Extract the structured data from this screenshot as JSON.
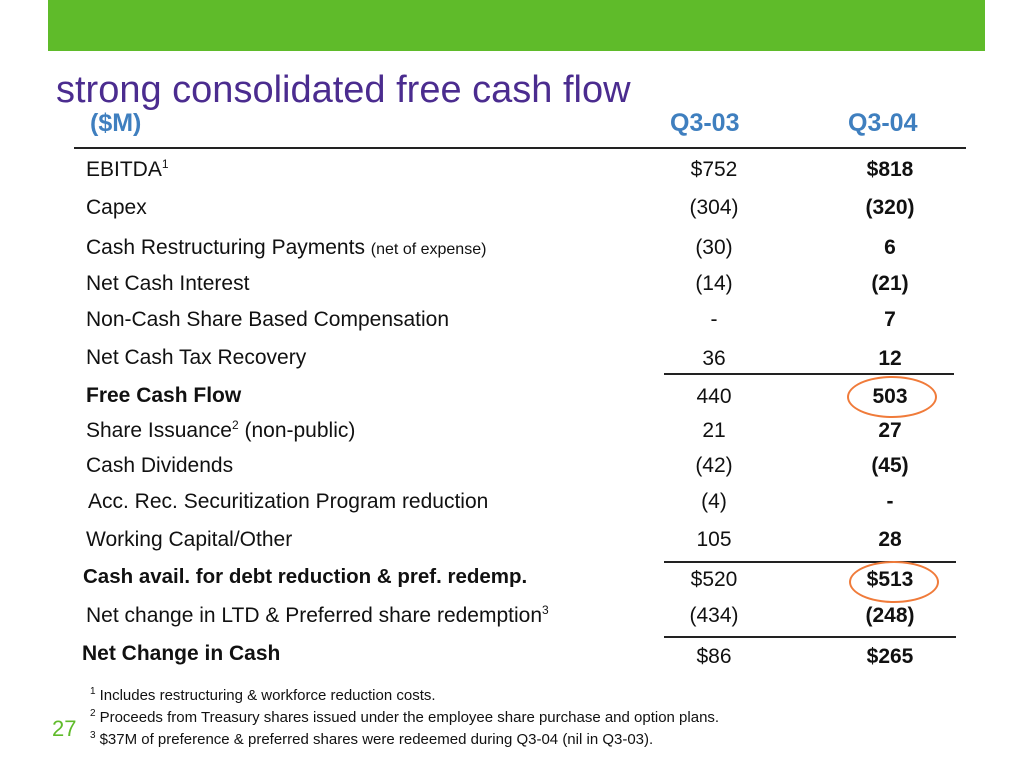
{
  "title": "strong consolidated free cash flow",
  "columns": {
    "unit": "($M)",
    "q1": "Q3-03",
    "q2": "Q3-04"
  },
  "rows": [
    {
      "label": "EBITDA",
      "sup": "1",
      "note": "",
      "v1": "$752",
      "v2": "$818"
    },
    {
      "label": "Capex",
      "sup": "",
      "note": "",
      "v1": "(304)",
      "v2": "(320)"
    },
    {
      "label": "Cash Restructuring Payments",
      "sup": "",
      "note": "(net of expense)",
      "v1": "(30)",
      "v2": "6"
    },
    {
      "label": "Net Cash Interest",
      "sup": "",
      "note": "",
      "v1": "(14)",
      "v2": "(21)"
    },
    {
      "label": "Non-Cash Share Based Compensation",
      "sup": "",
      "note": "",
      "v1": "-",
      "v2": "7"
    },
    {
      "label": "Net Cash Tax Recovery",
      "sup": "",
      "note": "",
      "v1": "36",
      "v2": "12"
    },
    {
      "label": "Free Cash Flow",
      "sup": "",
      "note": "",
      "v1": "440",
      "v2": "503"
    },
    {
      "label": "Share Issuance",
      "sup": "2",
      "note": "(non-public)",
      "v1": "21",
      "v2": "27"
    },
    {
      "label": "Cash Dividends",
      "sup": "",
      "note": "",
      "v1": "(42)",
      "v2": "(45)"
    },
    {
      "label": "Acc. Rec. Securitization Program reduction",
      "sup": "",
      "note": "",
      "v1": "(4)",
      "v2": "-"
    },
    {
      "label": "Working Capital/Other",
      "sup": "",
      "note": "",
      "v1": "105",
      "v2": "28"
    },
    {
      "label": "Cash avail. for debt reduction & pref. redemp.",
      "sup": "",
      "note": "",
      "v1": "$520",
      "v2": "$513"
    },
    {
      "label": "Net change in LTD & Preferred share redemption",
      "sup": "3",
      "note": "",
      "v1": "(434)",
      "v2": "(248)"
    },
    {
      "label": "Net Change in Cash",
      "sup": "",
      "note": "",
      "v1": "$86",
      "v2": "$265"
    }
  ],
  "footnotes": [
    {
      "num": "1",
      "text": "Includes restructuring & workforce reduction costs."
    },
    {
      "num": "2",
      "text": "Proceeds from Treasury shares issued under the employee share purchase and option plans."
    },
    {
      "num": "3",
      "text": "$37M of preference & preferred shares were redeemed during Q3-04 (nil in Q3-03)."
    }
  ],
  "page_number": "27",
  "colors": {
    "accent_green": "#5fbb2a",
    "title_purple": "#4b2c8f",
    "header_blue": "#3f7fbf",
    "highlight_orange": "#f07b3a"
  }
}
